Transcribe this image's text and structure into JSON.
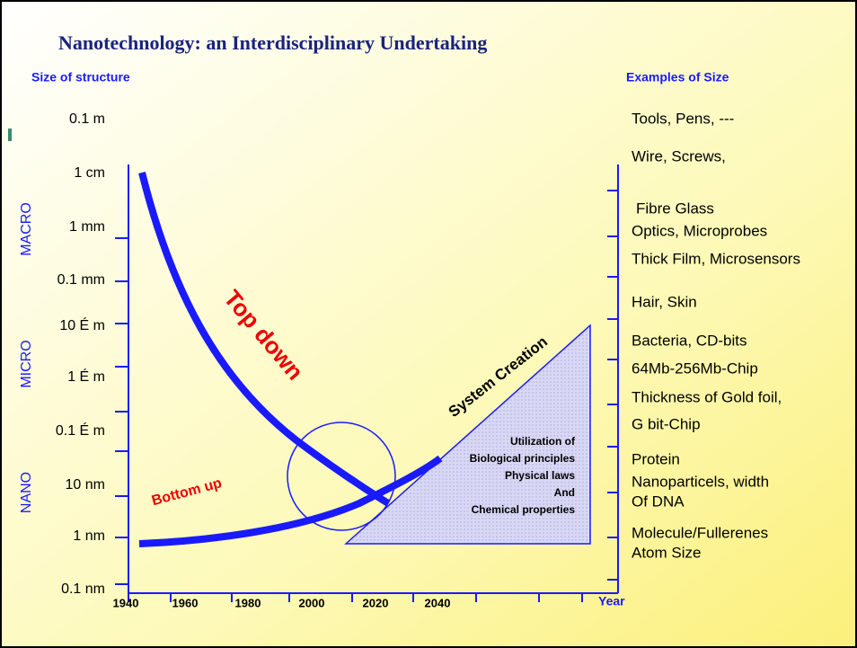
{
  "header": {
    "title": "Nanotechnology: an Interdisciplinary Undertaking",
    "left_heading": "Size of structure",
    "right_heading": "Examples of Size"
  },
  "size_scale": [
    "0.1 m",
    "1 cm",
    "1 mm",
    "0.1 mm",
    "10 É m",
    "1 É m",
    "0.1 É m",
    "10 nm",
    "1 nm",
    "0.1 nm"
  ],
  "regions": [
    "MACRO",
    "MICRO",
    "NANO"
  ],
  "years": [
    "1940",
    "1960",
    "1980",
    "2000",
    "2020",
    "2040"
  ],
  "x_axis_label": "Year",
  "examples": [
    "Tools, Pens, ---",
    "Wire, Screws,",
    "Fibre Glass",
    "Optics, Microprobes",
    "Thick Film, Microsensors",
    "Hair, Skin",
    "Bacteria, CD-bits",
    "64Mb-256Mb-Chip",
    "Thickness of Gold foil,",
    "G bit-Chip",
    "Protein",
    "Nanoparticels, width",
    "Of DNA",
    "Molecule/Fullerenes",
    "Atom Size"
  ],
  "annotations": {
    "top_down": "Top down",
    "bottom_up": "Bottom up",
    "system_creation": "System Creation",
    "triangle_text": [
      "Utilization of",
      "Biological principles",
      "Physical laws",
      "And",
      "Chemical properties"
    ]
  }
}
